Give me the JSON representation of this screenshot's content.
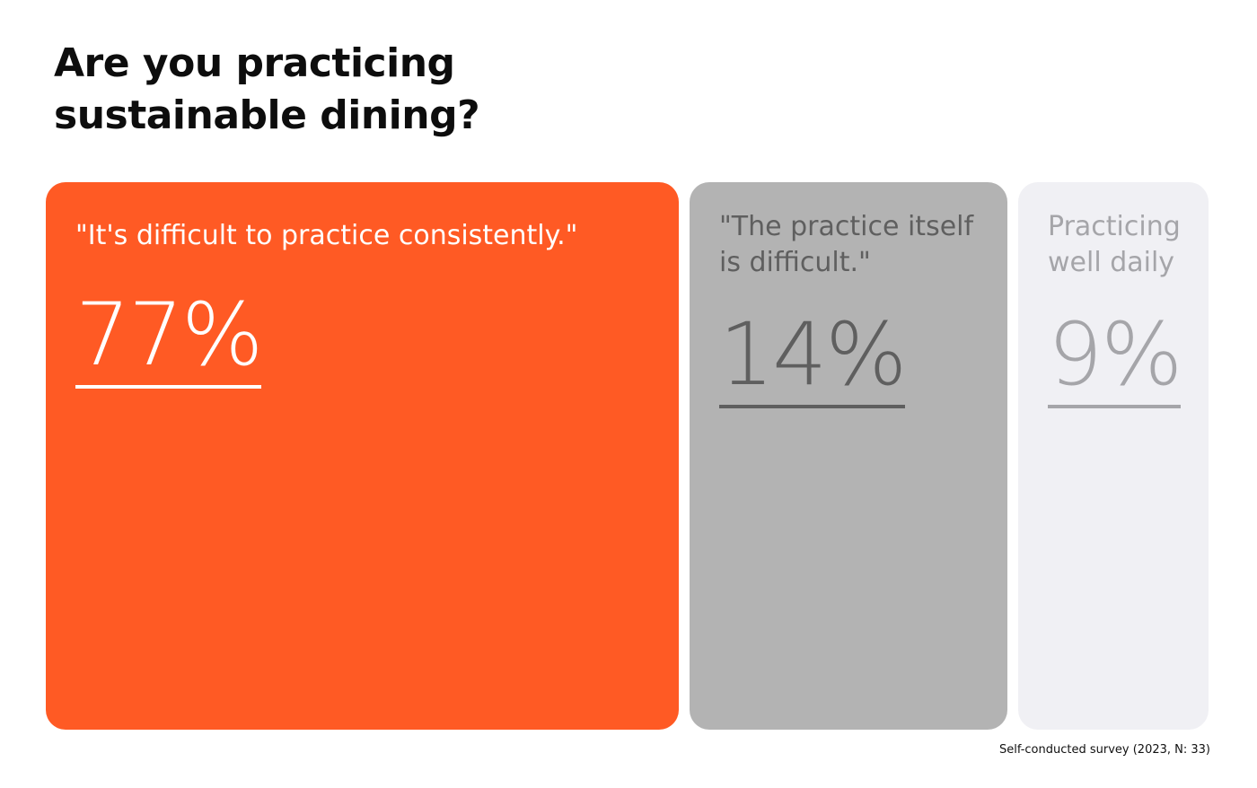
{
  "page": {
    "title": "Are you practicing\nsustainable dining?",
    "footnote": "Self-conducted survey (2023, N: 33)"
  },
  "chart_data": {
    "type": "bar",
    "title": "Are you practicing sustainable dining?",
    "categories": [
      "\"It's difficult to practice consistently.\"",
      "\"The practice itself\nis difficult.\"",
      "Practicing\nwell daily"
    ],
    "values": [
      77,
      14,
      9
    ],
    "value_labels": [
      "77%",
      "14%",
      "9%"
    ],
    "unit": "%",
    "colors": {
      "card_backgrounds": [
        "#ff5a24",
        "#b3b3b3",
        "#f0f0f4"
      ],
      "text_colors": [
        "#ffffff",
        "#5f5f5f",
        "#a5a5a9"
      ]
    }
  }
}
